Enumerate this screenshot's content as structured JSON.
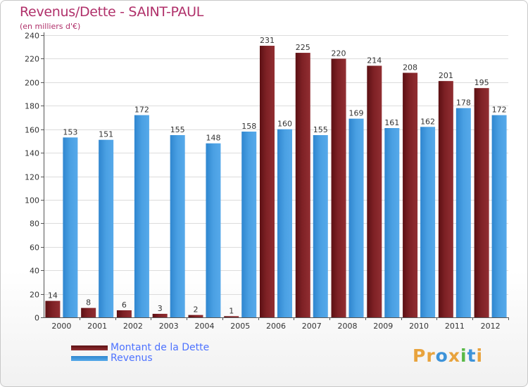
{
  "header": {
    "title": "Revenus/Dette - SAINT-PAUL",
    "subtitle": "(en milliers d'€)"
  },
  "colors": {
    "dette": "#7a1e22",
    "revenus": "#3d93d9",
    "title": "#b0306a",
    "legend_text": "#4d72ff"
  },
  "legend": {
    "dette_label": "Montant de la Dette",
    "revenus_label": "Revenus"
  },
  "logo": {
    "letters": [
      "P",
      "r",
      "o",
      "x",
      "i",
      "t",
      "i"
    ],
    "colors": [
      "#e8a33d",
      "#e8a33d",
      "#3d93d9",
      "#e8a33d",
      "#58b947",
      "#3d93d9",
      "#e8a33d"
    ]
  },
  "chart_data": {
    "type": "bar",
    "categories": [
      "2000",
      "2001",
      "2002",
      "2003",
      "2004",
      "2005",
      "2006",
      "2007",
      "2008",
      "2009",
      "2010",
      "2011",
      "2012"
    ],
    "series": [
      {
        "name": "Montant de la Dette",
        "values": [
          14,
          8,
          6,
          3,
          2,
          1,
          231,
          225,
          220,
          214,
          208,
          201,
          195
        ]
      },
      {
        "name": "Revenus",
        "values": [
          153,
          151,
          172,
          155,
          148,
          158,
          160,
          155,
          169,
          161,
          162,
          178,
          172
        ]
      }
    ],
    "ylim": [
      0,
      240
    ],
    "yticks": [
      0,
      20,
      40,
      60,
      80,
      100,
      120,
      140,
      160,
      180,
      200,
      220,
      240
    ],
    "grid": "horizontal",
    "legend_position": "bottom-left"
  }
}
